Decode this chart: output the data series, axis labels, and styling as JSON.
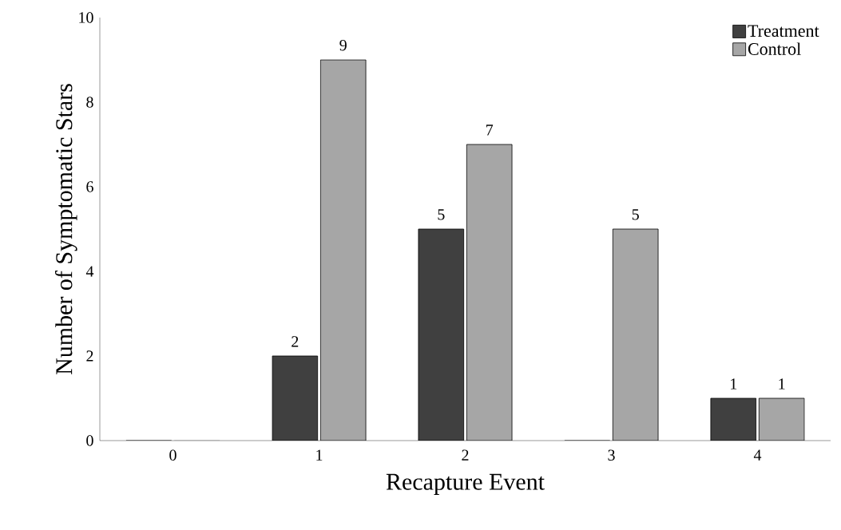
{
  "chart_data": {
    "type": "bar",
    "xlabel": "Recapture Event",
    "ylabel": "Number of Symptomatic Stars",
    "categories": [
      "0",
      "1",
      "2",
      "3",
      "4"
    ],
    "series": [
      {
        "name": "Treatment",
        "color": "#404040",
        "values": [
          0,
          2,
          5,
          0,
          1
        ],
        "value_labels": [
          null,
          "2",
          "5",
          null,
          "1"
        ]
      },
      {
        "name": "Control",
        "color": "#a6a6a6",
        "values": [
          0,
          9,
          7,
          5,
          1
        ],
        "value_labels": [
          null,
          "9",
          "7",
          "5",
          "1"
        ]
      }
    ],
    "ylim": [
      0,
      10
    ],
    "yticks": [
      0,
      2,
      4,
      6,
      8,
      10
    ],
    "legend": "top right",
    "grid": false
  }
}
